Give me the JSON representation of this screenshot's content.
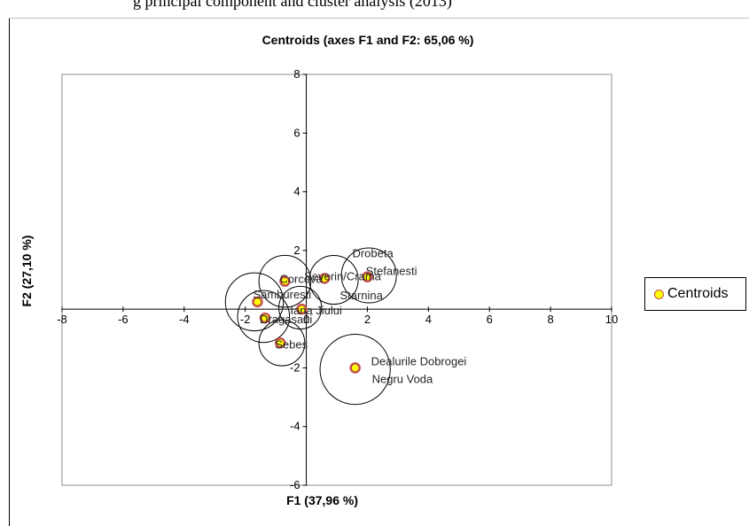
{
  "top_caption": "g principal component and cluster analysis (2013)",
  "chart_data": {
    "type": "scatter",
    "title": "Centroids (axes F1 and F2: 65,06 %)",
    "xlabel": "F1 (37,96 %)",
    "ylabel": "F2 (27,10 %)",
    "xlim": [
      -8,
      10
    ],
    "ylim": [
      -6,
      8
    ],
    "xticks": [
      -8,
      -6,
      -4,
      -2,
      0,
      2,
      4,
      6,
      8,
      10
    ],
    "yticks": [
      -6,
      -4,
      -2,
      2,
      4,
      6,
      8
    ],
    "xtick_labels": [
      "-8",
      "-6",
      "-4",
      "-2",
      "0",
      "2",
      "4",
      "6",
      "8",
      "10"
    ],
    "ytick_labels": [
      "-6",
      "-4",
      "-2",
      "2",
      "4",
      "6",
      "8"
    ],
    "grid": false,
    "legend_position": "right",
    "series": [
      {
        "name": "Centroids",
        "marker_fill": "#ffff00",
        "marker_edge": "#c0504d",
        "points": [
          {
            "x": 2.0,
            "y": 1.1,
            "label": "Drobeta"
          },
          {
            "x": 0.6,
            "y": 1.05,
            "label": "Severin/Crama"
          },
          {
            "x": -0.7,
            "y": 0.95,
            "label": "Corcova"
          },
          {
            "x": -1.6,
            "y": 0.25,
            "label": "Samburesti"
          },
          {
            "x": -0.15,
            "y": 0.0,
            "label": "Iana Jiului"
          },
          {
            "x": -1.35,
            "y": -0.3,
            "label": "Dragasani"
          },
          {
            "x": -0.85,
            "y": -1.15,
            "label": "Sebes"
          },
          {
            "x": 1.6,
            "y": -2.0,
            "label": "Dealurile Dobrogei"
          }
        ]
      }
    ],
    "extra_labels": [
      "Stefanesti",
      "Starnina",
      "Negru Voda"
    ],
    "circles": [
      {
        "x": 2.05,
        "y": 1.15,
        "r": 0.9
      },
      {
        "x": 0.9,
        "y": 1.0,
        "r": 0.8
      },
      {
        "x": -0.7,
        "y": 0.95,
        "r": 0.85
      },
      {
        "x": -1.7,
        "y": 0.25,
        "r": 0.95
      },
      {
        "x": -0.2,
        "y": 0.05,
        "r": 0.7
      },
      {
        "x": -1.4,
        "y": -0.25,
        "r": 0.85
      },
      {
        "x": -0.8,
        "y": -1.15,
        "r": 0.75
      },
      {
        "x": 1.6,
        "y": -2.05,
        "r": 1.15
      }
    ]
  },
  "legend": {
    "label": "Centroids"
  }
}
